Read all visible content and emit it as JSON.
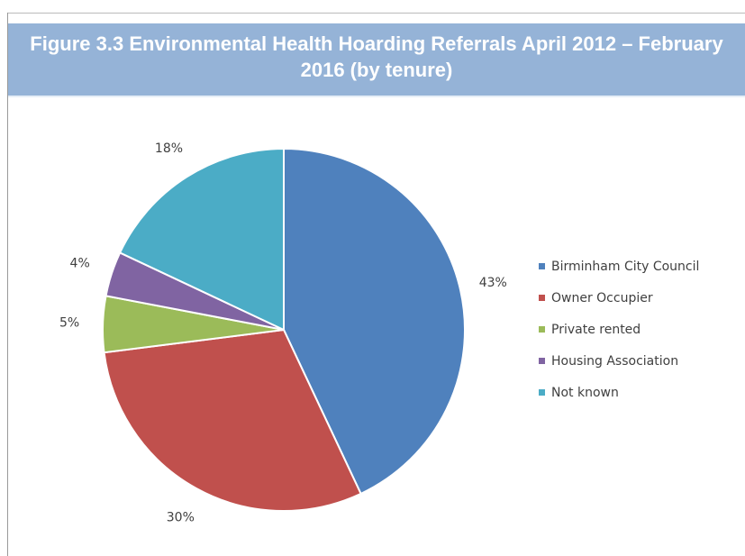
{
  "chart_data": {
    "type": "pie",
    "title": "Figure 3.3 Environmental Health Hoarding Referrals April 2012 – February 2016 (by tenure)",
    "categories": [
      "Birminham City Council",
      "Owner Occupier",
      "Private rented",
      "Housing Association",
      "Not known"
    ],
    "values": [
      43,
      30,
      5,
      4,
      18
    ],
    "value_labels": [
      "43%",
      "30%",
      "5%",
      "4%",
      "18%"
    ],
    "colors": [
      "#4f81bd",
      "#c0504d",
      "#9bbb59",
      "#8064a2",
      "#4bacc6"
    ],
    "legend": "right"
  }
}
